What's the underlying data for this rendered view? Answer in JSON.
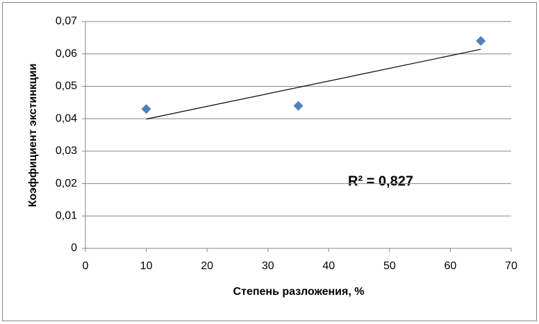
{
  "chart_data": {
    "type": "scatter",
    "x_label": "Степень разложения, %",
    "y_label": "Коэффициент экстинкции",
    "x": [
      10,
      35,
      65
    ],
    "series": [
      {
        "color": "#4f81bd",
        "values": [
          0.043,
          0.044,
          0.064
        ]
      }
    ],
    "trendline": "linear",
    "annotation": "R² = 0,827",
    "xlim": [
      0,
      70
    ],
    "xticks": [
      0,
      10,
      20,
      30,
      40,
      50,
      60,
      70
    ],
    "ylim": [
      0,
      0.07
    ],
    "yticks": [
      0,
      {
        "value": 0.01,
        "label": "0,01"
      },
      {
        "value": 0.02,
        "label": "0,02"
      },
      {
        "value": 0.03,
        "label": "0,03"
      },
      {
        "value": 0.04,
        "label": "0,04"
      },
      {
        "value": 0.05,
        "label": "0,05"
      },
      {
        "value": 0.06,
        "label": "0,06"
      },
      {
        "value": 0.07,
        "label": "0,07"
      }
    ],
    "grid": true
  }
}
